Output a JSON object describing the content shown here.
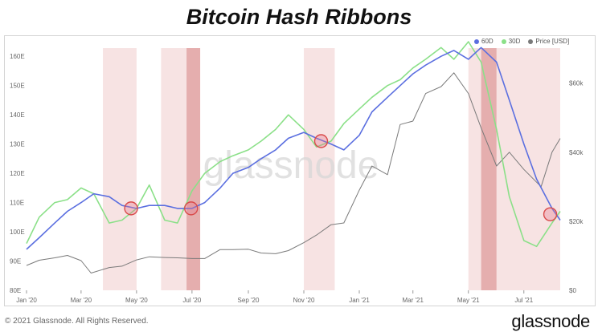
{
  "header": {
    "title": "Bitcoin Hash Ribbons"
  },
  "footer": {
    "copyright": "© 2021 Glassnode. All Rights Reserved.",
    "brand": "glassnode"
  },
  "watermark": "glassnode",
  "colors": {
    "sma60": "#5b6fe0",
    "sma30": "#8be088",
    "price": "#7a7a7a",
    "band_light": "#f4d9d9",
    "band_dark": "#e2a5a5",
    "circle": "#d94a4a"
  },
  "chart_data": {
    "type": "line",
    "title": "Bitcoin Hash Ribbons",
    "xlabel": "",
    "ylabel_left": "",
    "ylabel_right": "",
    "x_ticks": [
      "Jan '20",
      "Mar '20",
      "May '20",
      "Jul '20",
      "Sep '20",
      "Nov '20",
      "Jan '21",
      "Mar '21",
      "May '21",
      "Jul '21"
    ],
    "x_tick_dates": [
      "2020-01-01",
      "2020-03-01",
      "2020-05-01",
      "2020-07-01",
      "2020-09-01",
      "2020-11-01",
      "2021-01-01",
      "2021-03-01",
      "2021-05-01",
      "2021-07-01"
    ],
    "y_left_ticks": [
      "80E",
      "90E",
      "100E",
      "110E",
      "120E",
      "130E",
      "140E",
      "150E",
      "160E"
    ],
    "y_left_range": [
      80,
      165
    ],
    "y_right_ticks": [
      "$0",
      "$20k",
      "$40k",
      "$60k"
    ],
    "y_right_range": [
      0,
      72000
    ],
    "grid": false,
    "legend_position": "top-right",
    "series": [
      {
        "name": "60D",
        "axis": "left",
        "color": "#5b6fe0",
        "points": [
          [
            "2020-01-01",
            94
          ],
          [
            "2020-01-15",
            98
          ],
          [
            "2020-02-01",
            103
          ],
          [
            "2020-02-15",
            107
          ],
          [
            "2020-03-01",
            110
          ],
          [
            "2020-03-15",
            113
          ],
          [
            "2020-04-01",
            112
          ],
          [
            "2020-04-15",
            109
          ],
          [
            "2020-05-01",
            108
          ],
          [
            "2020-05-15",
            109
          ],
          [
            "2020-06-01",
            109
          ],
          [
            "2020-06-15",
            108
          ],
          [
            "2020-07-01",
            108
          ],
          [
            "2020-07-15",
            110
          ],
          [
            "2020-08-01",
            115
          ],
          [
            "2020-08-15",
            120
          ],
          [
            "2020-09-01",
            122
          ],
          [
            "2020-09-15",
            125
          ],
          [
            "2020-10-01",
            128
          ],
          [
            "2020-10-15",
            132
          ],
          [
            "2020-11-01",
            134
          ],
          [
            "2020-11-15",
            132
          ],
          [
            "2020-12-01",
            130
          ],
          [
            "2020-12-15",
            128
          ],
          [
            "2021-01-01",
            133
          ],
          [
            "2021-01-15",
            141
          ],
          [
            "2021-02-01",
            146
          ],
          [
            "2021-02-15",
            150
          ],
          [
            "2021-03-01",
            154
          ],
          [
            "2021-03-15",
            157
          ],
          [
            "2021-04-01",
            160
          ],
          [
            "2021-04-15",
            162
          ],
          [
            "2021-05-01",
            159
          ],
          [
            "2021-05-15",
            163
          ],
          [
            "2021-06-01",
            158
          ],
          [
            "2021-06-15",
            145
          ],
          [
            "2021-07-01",
            130
          ],
          [
            "2021-07-15",
            118
          ],
          [
            "2021-08-01",
            108
          ],
          [
            "2021-08-10",
            104
          ]
        ]
      },
      {
        "name": "30D",
        "axis": "left",
        "color": "#8be088",
        "points": [
          [
            "2020-01-01",
            96
          ],
          [
            "2020-01-15",
            105
          ],
          [
            "2020-02-01",
            110
          ],
          [
            "2020-02-15",
            111
          ],
          [
            "2020-03-01",
            115
          ],
          [
            "2020-03-15",
            113
          ],
          [
            "2020-04-01",
            103
          ],
          [
            "2020-04-15",
            104
          ],
          [
            "2020-05-01",
            108
          ],
          [
            "2020-05-15",
            116
          ],
          [
            "2020-06-01",
            104
          ],
          [
            "2020-06-15",
            103
          ],
          [
            "2020-07-01",
            114
          ],
          [
            "2020-07-15",
            120
          ],
          [
            "2020-08-01",
            124
          ],
          [
            "2020-08-15",
            126
          ],
          [
            "2020-09-01",
            128
          ],
          [
            "2020-09-15",
            131
          ],
          [
            "2020-10-01",
            135
          ],
          [
            "2020-10-15",
            140
          ],
          [
            "2020-11-01",
            135
          ],
          [
            "2020-11-15",
            129
          ],
          [
            "2020-12-01",
            131
          ],
          [
            "2020-12-15",
            137
          ],
          [
            "2021-01-01",
            142
          ],
          [
            "2021-01-15",
            146
          ],
          [
            "2021-02-01",
            150
          ],
          [
            "2021-02-15",
            152
          ],
          [
            "2021-03-01",
            156
          ],
          [
            "2021-03-15",
            159
          ],
          [
            "2021-04-01",
            163
          ],
          [
            "2021-04-15",
            159
          ],
          [
            "2021-05-01",
            165
          ],
          [
            "2021-05-15",
            158
          ],
          [
            "2021-06-01",
            135
          ],
          [
            "2021-06-15",
            112
          ],
          [
            "2021-07-01",
            97
          ],
          [
            "2021-07-15",
            95
          ],
          [
            "2021-08-01",
            103
          ],
          [
            "2021-08-10",
            107
          ]
        ]
      },
      {
        "name": "Price [USD]",
        "axis": "right",
        "color": "#7a7a7a",
        "points": [
          [
            "2020-01-01",
            7200
          ],
          [
            "2020-01-15",
            8700
          ],
          [
            "2020-02-01",
            9400
          ],
          [
            "2020-02-15",
            10100
          ],
          [
            "2020-03-01",
            8600
          ],
          [
            "2020-03-12",
            5000
          ],
          [
            "2020-04-01",
            6600
          ],
          [
            "2020-04-15",
            7000
          ],
          [
            "2020-05-01",
            8800
          ],
          [
            "2020-05-15",
            9700
          ],
          [
            "2020-06-01",
            9500
          ],
          [
            "2020-06-15",
            9400
          ],
          [
            "2020-07-01",
            9200
          ],
          [
            "2020-07-15",
            9200
          ],
          [
            "2020-08-01",
            11800
          ],
          [
            "2020-08-15",
            11800
          ],
          [
            "2020-09-01",
            11900
          ],
          [
            "2020-09-15",
            10800
          ],
          [
            "2020-10-01",
            10600
          ],
          [
            "2020-10-15",
            11500
          ],
          [
            "2020-11-01",
            13800
          ],
          [
            "2020-11-15",
            16000
          ],
          [
            "2020-12-01",
            19000
          ],
          [
            "2020-12-15",
            19500
          ],
          [
            "2021-01-01",
            29000
          ],
          [
            "2021-01-15",
            36000
          ],
          [
            "2021-02-01",
            33500
          ],
          [
            "2021-02-15",
            48000
          ],
          [
            "2021-03-01",
            49000
          ],
          [
            "2021-03-15",
            57000
          ],
          [
            "2021-04-01",
            59000
          ],
          [
            "2021-04-15",
            63000
          ],
          [
            "2021-05-01",
            57000
          ],
          [
            "2021-05-15",
            47000
          ],
          [
            "2021-06-01",
            36000
          ],
          [
            "2021-06-15",
            40000
          ],
          [
            "2021-07-01",
            35000
          ],
          [
            "2021-07-20",
            30000
          ],
          [
            "2021-08-01",
            40000
          ],
          [
            "2021-08-10",
            44000
          ]
        ]
      }
    ],
    "shaded_periods": [
      {
        "start": "2020-03-25",
        "end": "2020-05-01",
        "shade": "light"
      },
      {
        "start": "2020-05-28",
        "end": "2020-06-25",
        "shade": "light"
      },
      {
        "start": "2020-06-25",
        "end": "2020-07-10",
        "shade": "dark"
      },
      {
        "start": "2020-11-01",
        "end": "2020-12-05",
        "shade": "light"
      },
      {
        "start": "2021-05-01",
        "end": "2021-05-15",
        "shade": "light"
      },
      {
        "start": "2021-05-15",
        "end": "2021-06-01",
        "shade": "dark"
      },
      {
        "start": "2021-06-01",
        "end": "2021-08-10",
        "shade": "light"
      }
    ],
    "crossover_points": [
      [
        "2020-04-25",
        108
      ],
      [
        "2020-06-30",
        108
      ],
      [
        "2020-11-20",
        131
      ],
      [
        "2021-07-30",
        106
      ]
    ]
  }
}
